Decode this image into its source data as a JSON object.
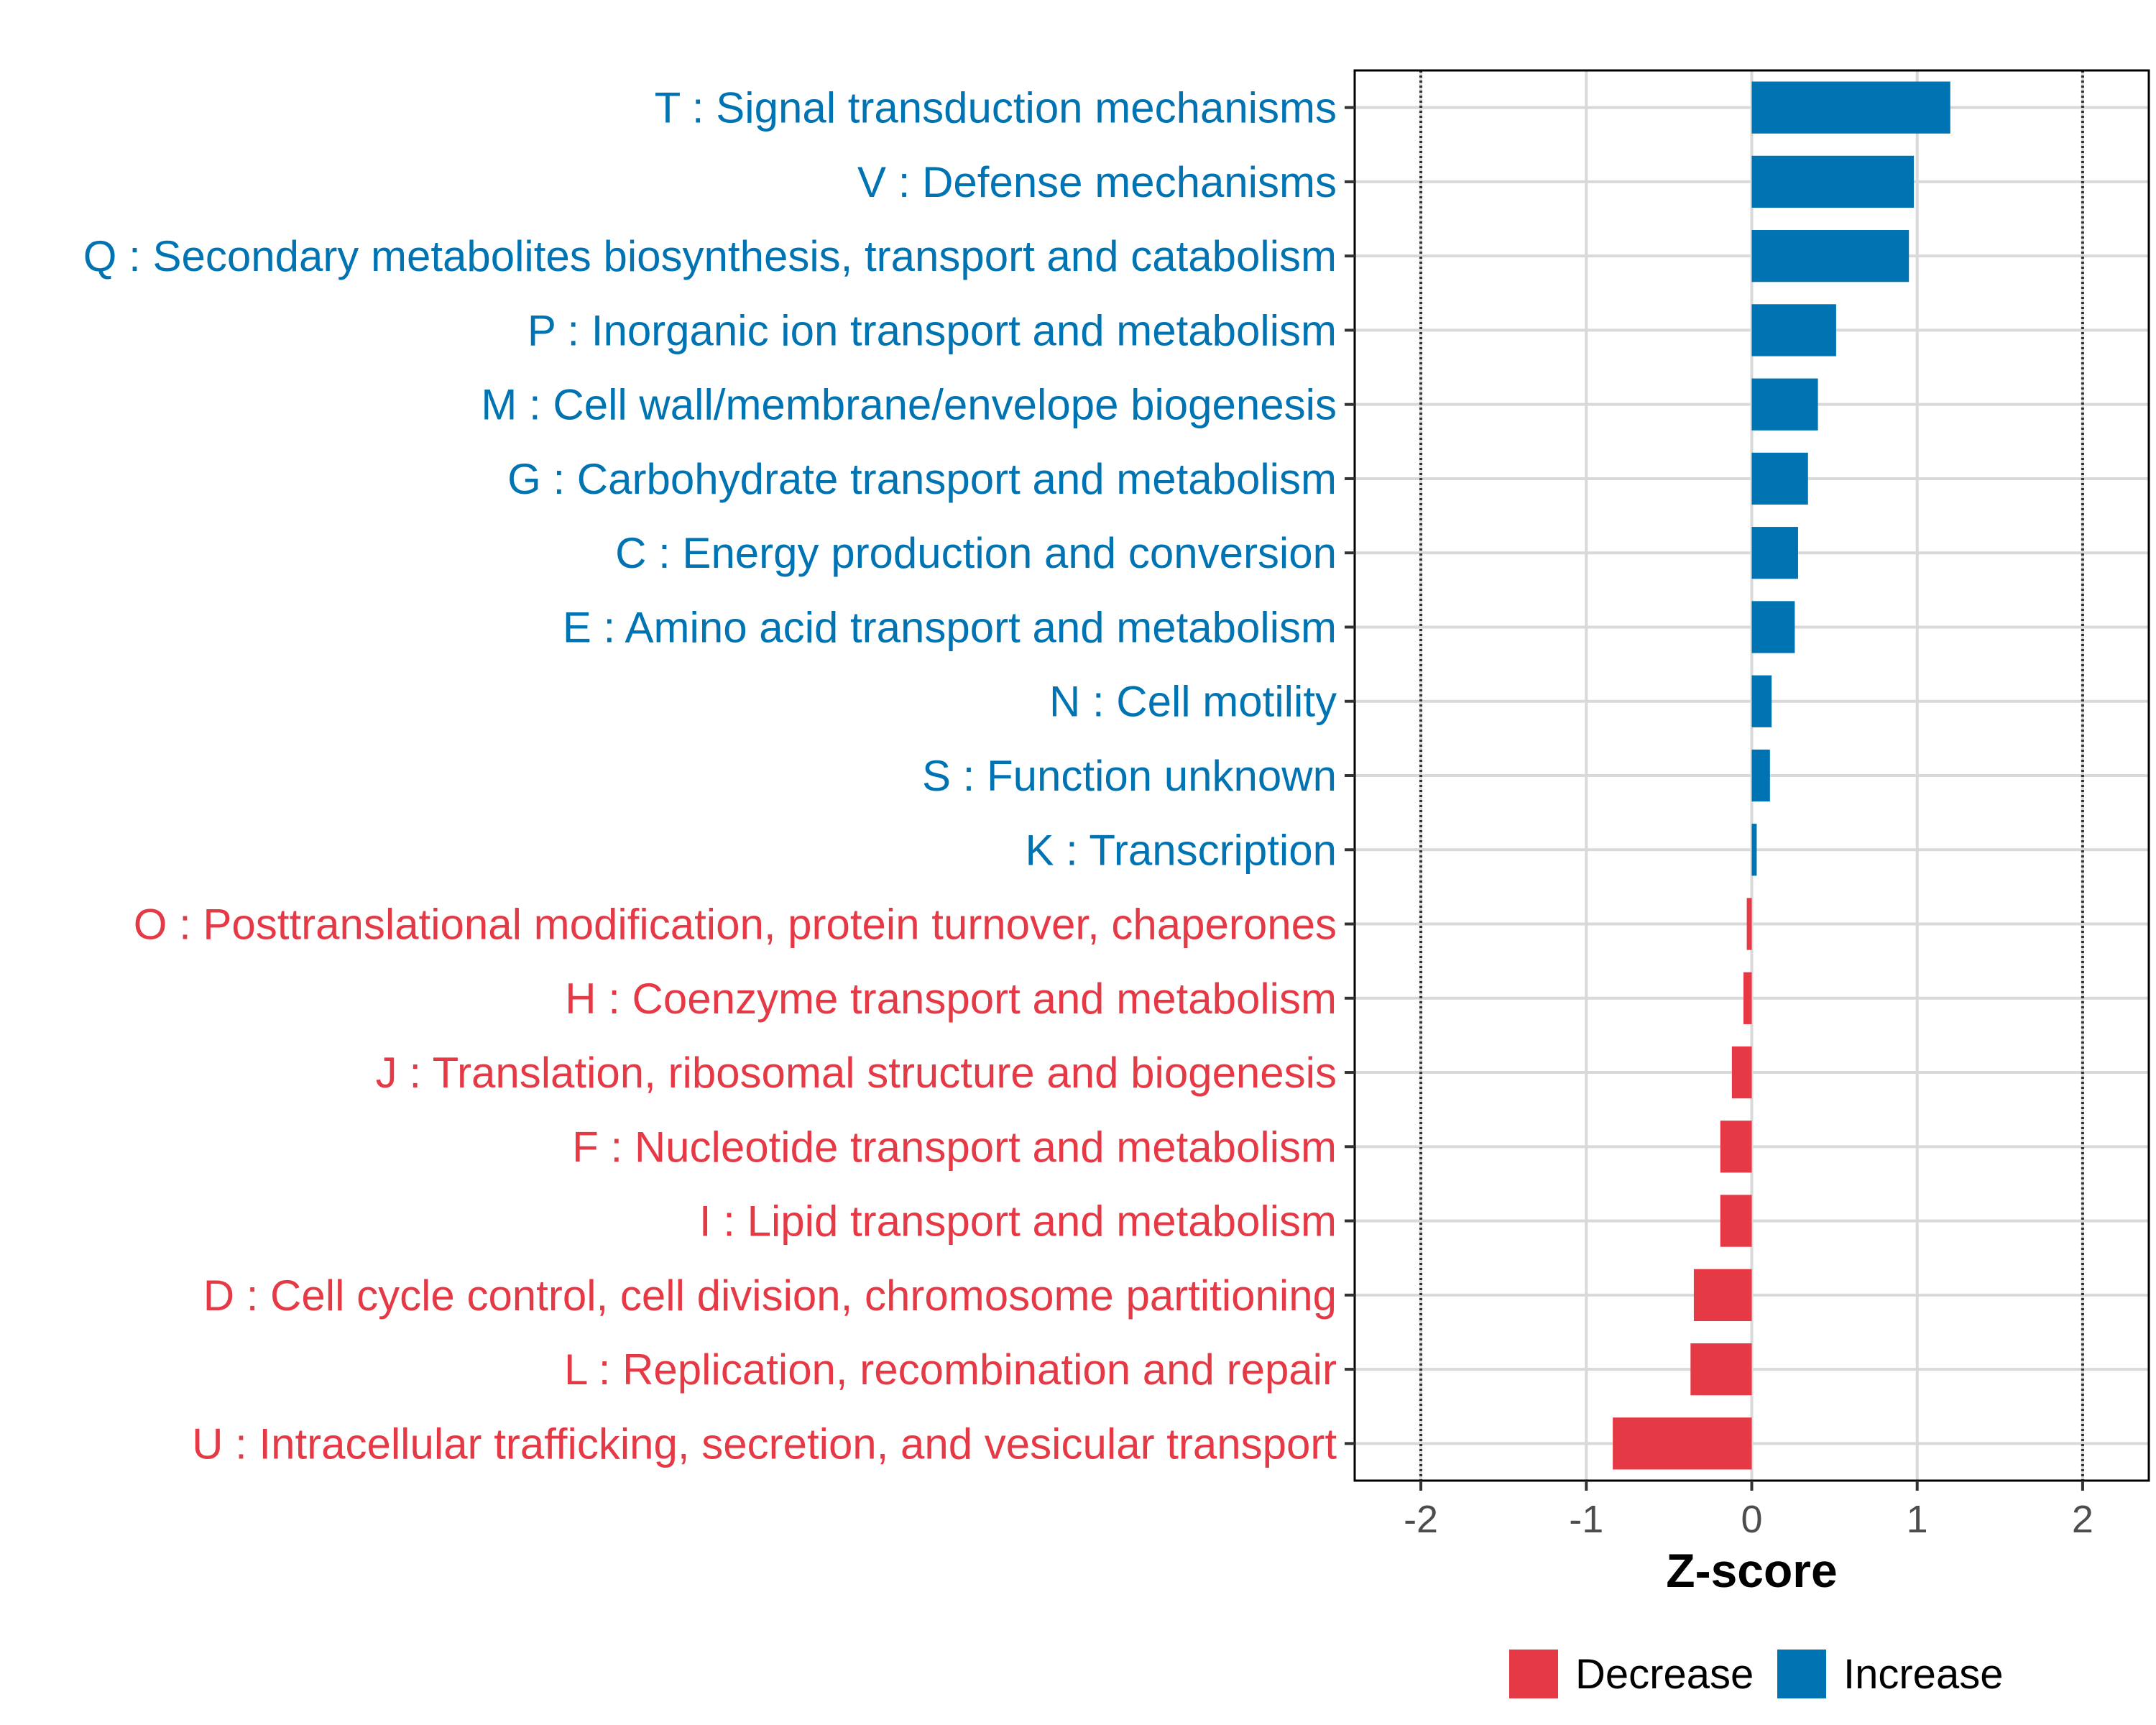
{
  "chart_data": {
    "type": "bar",
    "orientation": "horizontal",
    "xlabel": "Z-score",
    "ylabel": "",
    "xlim": [
      -2.4,
      2.4
    ],
    "x_ticks": [
      -2,
      -1,
      0,
      1,
      2
    ],
    "x_tick_labels": [
      "-2",
      "-1",
      "0",
      "1",
      "2"
    ],
    "reference_lines": [
      -2,
      2
    ],
    "grid": true,
    "colors": {
      "Increase": "#0073b3",
      "Decrease": "#e63946"
    },
    "categories": [
      "T : Signal transduction mechanisms",
      "V : Defense mechanisms",
      "Q : Secondary metabolites biosynthesis, transport and catabolism",
      "P : Inorganic ion transport and metabolism",
      "M : Cell wall/membrane/envelope biogenesis",
      "G : Carbohydrate transport and metabolism",
      "C : Energy production and conversion",
      "E : Amino acid transport and metabolism",
      "N : Cell motility",
      "S : Function unknown",
      "K : Transcription",
      "O : Posttranslational modification, protein turnover, chaperones",
      "H : Coenzyme transport and metabolism",
      "J : Translation, ribosomal structure and biogenesis",
      "F : Nucleotide transport and metabolism",
      "I : Lipid transport and metabolism",
      "D : Cell cycle control, cell division, chromosome partitioning",
      "L : Replication, recombination and repair",
      "U : Intracellular trafficking, secretion, and vesicular transport"
    ],
    "values": [
      1.2,
      0.98,
      0.95,
      0.51,
      0.4,
      0.34,
      0.28,
      0.26,
      0.12,
      0.11,
      0.03,
      -0.03,
      -0.05,
      -0.12,
      -0.19,
      -0.19,
      -0.35,
      -0.37,
      -0.84
    ],
    "groups": [
      "Increase",
      "Increase",
      "Increase",
      "Increase",
      "Increase",
      "Increase",
      "Increase",
      "Increase",
      "Increase",
      "Increase",
      "Increase",
      "Decrease",
      "Decrease",
      "Decrease",
      "Decrease",
      "Decrease",
      "Decrease",
      "Decrease",
      "Decrease"
    ],
    "legend": {
      "position": "bottom",
      "items": [
        {
          "label": "Decrease",
          "color": "#e63946"
        },
        {
          "label": "Increase",
          "color": "#0073b3"
        }
      ]
    }
  }
}
